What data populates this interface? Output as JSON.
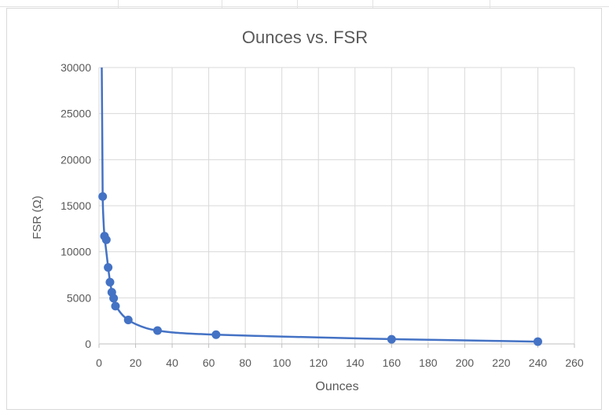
{
  "chart_data": {
    "type": "scatter",
    "title": "Ounces vs. FSR",
    "xlabel": "Ounces",
    "ylabel": "FSR (Ω)",
    "xlim": [
      0,
      260
    ],
    "ylim": [
      0,
      30000
    ],
    "xticks": [
      0,
      20,
      40,
      60,
      80,
      100,
      120,
      140,
      160,
      180,
      200,
      220,
      240,
      260
    ],
    "yticks": [
      0,
      5000,
      10000,
      15000,
      20000,
      25000,
      30000
    ],
    "grid": true,
    "legend": "none",
    "series": [
      {
        "color": "#4472c4",
        "points": [
          {
            "x": 2,
            "y": 16000
          },
          {
            "x": 3,
            "y": 11700
          },
          {
            "x": 4,
            "y": 11300
          },
          {
            "x": 5,
            "y": 8300
          },
          {
            "x": 6,
            "y": 6700
          },
          {
            "x": 7,
            "y": 5600
          },
          {
            "x": 8,
            "y": 4950
          },
          {
            "x": 9,
            "y": 4100
          },
          {
            "x": 16,
            "y": 2600
          },
          {
            "x": 32,
            "y": 1450
          },
          {
            "x": 64,
            "y": 1000
          },
          {
            "x": 160,
            "y": 500
          },
          {
            "x": 240,
            "y": 250
          }
        ],
        "curve": [
          {
            "x": 1.5,
            "y": 30000
          },
          {
            "x": 1.8,
            "y": 22000
          },
          {
            "x": 2,
            "y": 16000
          },
          {
            "x": 2.5,
            "y": 13200
          },
          {
            "x": 3,
            "y": 11700
          },
          {
            "x": 4,
            "y": 10000
          },
          {
            "x": 5,
            "y": 8300
          },
          {
            "x": 6,
            "y": 6800
          },
          {
            "x": 7,
            "y": 5700
          },
          {
            "x": 8,
            "y": 4900
          },
          {
            "x": 10,
            "y": 3900
          },
          {
            "x": 13,
            "y": 3100
          },
          {
            "x": 16,
            "y": 2600
          },
          {
            "x": 20,
            "y": 2150
          },
          {
            "x": 26,
            "y": 1700
          },
          {
            "x": 32,
            "y": 1450
          },
          {
            "x": 40,
            "y": 1250
          },
          {
            "x": 50,
            "y": 1120
          },
          {
            "x": 64,
            "y": 1000
          },
          {
            "x": 90,
            "y": 850
          },
          {
            "x": 120,
            "y": 700
          },
          {
            "x": 160,
            "y": 520
          },
          {
            "x": 200,
            "y": 380
          },
          {
            "x": 240,
            "y": 250
          }
        ]
      }
    ]
  }
}
